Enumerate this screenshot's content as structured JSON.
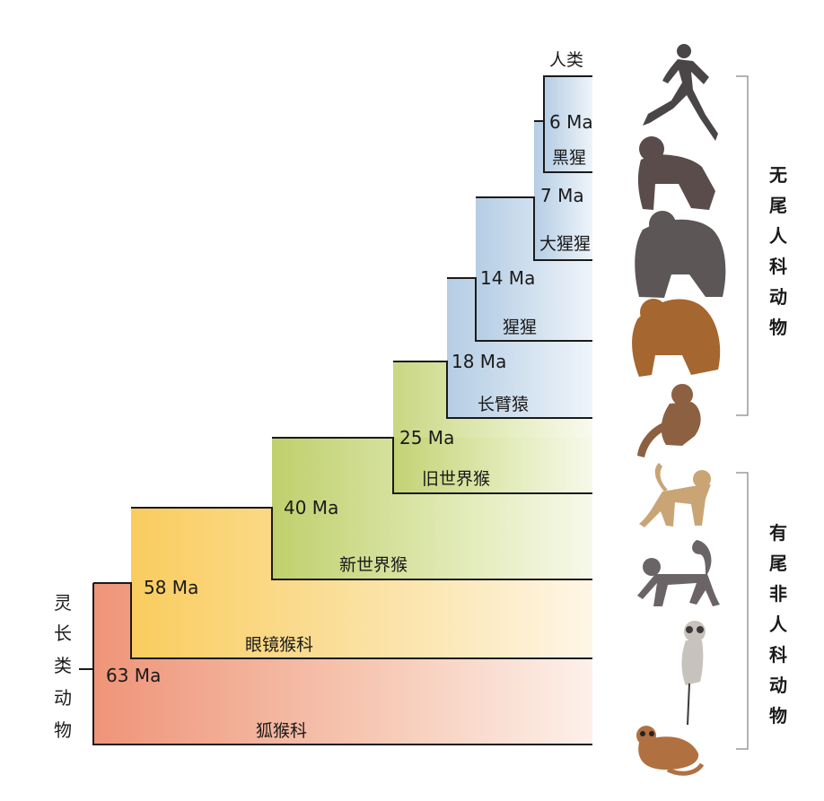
{
  "root_label": [
    "灵",
    "长",
    "类",
    "动",
    "物"
  ],
  "taxa": {
    "human": "人类",
    "chimpanzee": "黑猩",
    "gorilla": "大猩猩",
    "orangutan": "猩猩",
    "gibbon": "长臂猿",
    "old_world_monkey": "旧世界猴",
    "new_world_monkey": "新世界猴",
    "tarsier": "眼镜猴科",
    "lemur": "狐猴科"
  },
  "divergence_ages": {
    "primates": "63 Ma",
    "tarsier_split": "58 Ma",
    "new_world_split": "40 Ma",
    "old_world_split": "25 Ma",
    "gibbon_split": "18 Ma",
    "orangutan_split": "14 Ma",
    "gorilla_split": "7 Ma",
    "chimp_split": "6 Ma"
  },
  "groups": {
    "apes": [
      "无",
      "尾",
      "人",
      "科",
      "动",
      "物"
    ],
    "monkeys": [
      "有",
      "尾",
      "非",
      "人",
      "科",
      "动",
      "物"
    ]
  },
  "colors": {
    "red": "#ef9a82",
    "yellow": "#f8d06a",
    "green": "#c5d67a",
    "blue": "#b9d0e6",
    "line": "#1a1a1a"
  },
  "icons": [
    "runner-icon",
    "chimpanzee-icon",
    "gorilla-icon",
    "orangutan-icon",
    "gibbon-icon",
    "macaque-icon",
    "spider-monkey-icon",
    "tarsier-icon",
    "lemur-icon"
  ]
}
